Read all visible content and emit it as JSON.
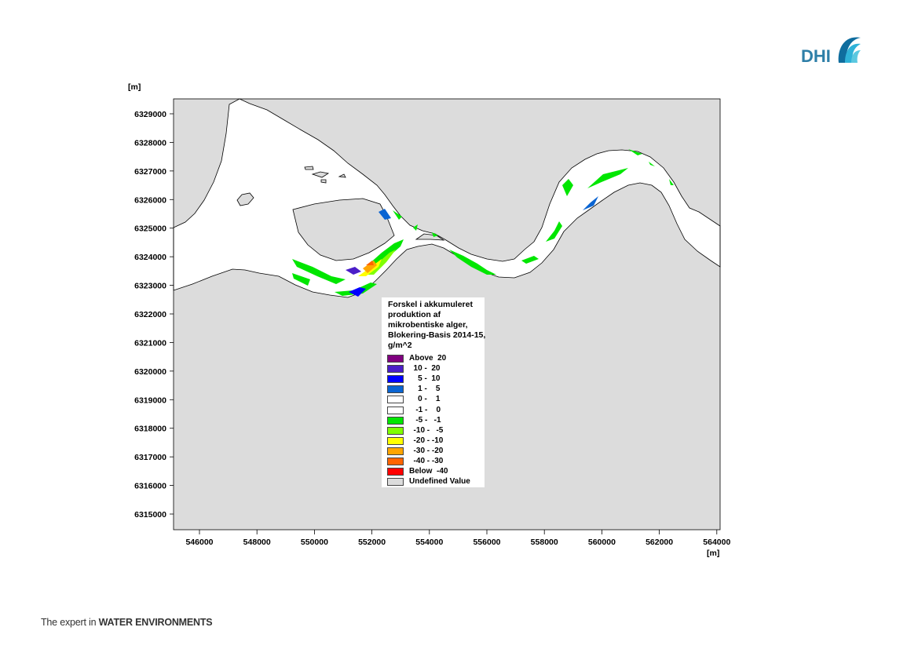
{
  "footer": {
    "prefix": "The expert in ",
    "emphasis": "WATER ENVIRONMENTS"
  },
  "logo": {
    "text": "DHI",
    "accent_colors": [
      "#0f6d9e",
      "#2fb2d8",
      "#5bc8e0"
    ]
  },
  "map": {
    "y_unit": "[m]",
    "x_unit": "[m]",
    "y_ticks": [
      "6329000",
      "6328000",
      "6327000",
      "6326000",
      "6325000",
      "6324000",
      "6323000",
      "6322000",
      "6321000",
      "6320000",
      "6319000",
      "6318000",
      "6317000",
      "6316000",
      "6315000"
    ],
    "x_ticks": [
      "546000",
      "548000",
      "550000",
      "552000",
      "554000",
      "556000",
      "558000",
      "560000",
      "562000",
      "564000"
    ],
    "land_color": "#dcdcdc",
    "water_color": "#ffffff"
  },
  "legend": {
    "title": "Forskel i akkumuleret produktion af mikrobentiske alger, Blokering-Basis 2014-15, g/m^2",
    "items": [
      {
        "label": "Above  20",
        "color": "#800080"
      },
      {
        "label": "  10 -  20",
        "color": "#4b1ec8"
      },
      {
        "label": "    5 -  10",
        "color": "#0000ff"
      },
      {
        "label": "    1 -    5",
        "color": "#0a64d2"
      },
      {
        "label": "    0 -    1",
        "color": "#ffffff"
      },
      {
        "label": "   -1 -    0",
        "color": "#ffffff"
      },
      {
        "label": "   -5 -   -1",
        "color": "#00e600"
      },
      {
        "label": "  -10 -   -5",
        "color": "#80ff00"
      },
      {
        "label": "  -20 - -10",
        "color": "#ffff00"
      },
      {
        "label": "  -30 - -20",
        "color": "#ffa500"
      },
      {
        "label": "  -40 - -30",
        "color": "#ff6400"
      },
      {
        "label": "Below  -40",
        "color": "#ff0000"
      },
      {
        "label": "Undefined Value",
        "color": "#dcdcdc"
      }
    ]
  }
}
